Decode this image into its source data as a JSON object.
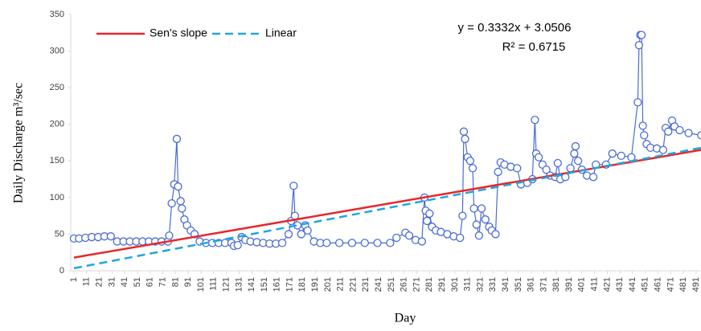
{
  "chart_data": {
    "type": "line",
    "x_label": "Day",
    "y_label": "Daily Discharge m³/sec",
    "annotations": [
      "y = 0.3332x + 3.0506",
      "R² = 0.6715"
    ],
    "xlim": [
      1,
      495
    ],
    "ylim": [
      0,
      350
    ],
    "yticks": [
      0,
      50,
      100,
      150,
      200,
      250,
      300,
      350
    ],
    "xticks": [
      1,
      11,
      21,
      31,
      41,
      51,
      61,
      71,
      81,
      91,
      101,
      111,
      121,
      131,
      141,
      151,
      161,
      171,
      181,
      191,
      201,
      211,
      221,
      231,
      241,
      251,
      261,
      271,
      281,
      291,
      301,
      311,
      321,
      331,
      341,
      351,
      361,
      371,
      381,
      391,
      401,
      411,
      421,
      431,
      441,
      451,
      461,
      471,
      481,
      491
    ],
    "grid": false,
    "legend_position": "top-left",
    "series": [
      {
        "color": "#4a6cd4",
        "marker": "circle",
        "x": [
          1,
          5,
          10,
          15,
          20,
          25,
          30,
          35,
          40,
          45,
          50,
          55,
          60,
          65,
          70,
          75,
          76,
          78,
          80,
          82,
          83,
          85,
          86,
          88,
          90,
          93,
          96,
          100,
          105,
          110,
          115,
          120,
          125,
          127,
          130,
          133,
          136,
          140,
          145,
          150,
          155,
          160,
          165,
          170,
          172,
          174,
          175,
          177,
          180,
          183,
          185,
          190,
          195,
          200,
          210,
          220,
          230,
          240,
          250,
          255,
          262,
          265,
          270,
          275,
          277,
          278,
          279,
          281,
          283,
          286,
          290,
          295,
          300,
          305,
          307,
          308,
          309,
          311,
          313,
          315,
          316,
          318,
          320,
          322,
          325,
          328,
          330,
          333,
          335,
          337,
          340,
          345,
          350,
          353,
          358,
          362,
          364,
          365,
          367,
          370,
          373,
          376,
          380,
          382,
          384,
          388,
          392,
          395,
          396,
          398,
          401,
          405,
          410,
          412,
          420,
          425,
          432,
          440,
          445,
          446,
          447,
          448,
          449,
          450,
          452,
          455,
          460,
          465,
          467,
          469,
          472,
          474,
          478,
          485,
          495
        ],
        "values": [
          44,
          44,
          45,
          46,
          46,
          47,
          47,
          40,
          40,
          40,
          40,
          40,
          40,
          40,
          40,
          40,
          48,
          92,
          118,
          180,
          115,
          95,
          85,
          70,
          62,
          55,
          50,
          40,
          38,
          38,
          38,
          38,
          38,
          34,
          35,
          46,
          42,
          40,
          39,
          38,
          37,
          37,
          38,
          50,
          68,
          116,
          75,
          62,
          50,
          62,
          55,
          40,
          38,
          38,
          38,
          38,
          38,
          38,
          38,
          45,
          52,
          48,
          42,
          40,
          100,
          82,
          68,
          78,
          60,
          55,
          53,
          50,
          47,
          45,
          75,
          190,
          180,
          155,
          150,
          140,
          85,
          63,
          48,
          85,
          70,
          60,
          55,
          50,
          135,
          148,
          145,
          142,
          140,
          118,
          120,
          125,
          206,
          160,
          155,
          145,
          138,
          130,
          128,
          147,
          125,
          128,
          140,
          160,
          170,
          150,
          138,
          130,
          128,
          145,
          145,
          160,
          157,
          155,
          230,
          308,
          322,
          322,
          198,
          185,
          173,
          168,
          167,
          165,
          195,
          190,
          205,
          197,
          192,
          188,
          185
        ]
      },
      {
        "name": "Sen's slope",
        "color": "#e8262a",
        "dashed": false,
        "x": [
          1,
          495
        ],
        "values": [
          18,
          165
        ]
      },
      {
        "name": "Linear",
        "color": "#1ea7e1",
        "dashed": true,
        "x": [
          1,
          495
        ],
        "values": [
          3.4,
          168
        ]
      }
    ]
  }
}
